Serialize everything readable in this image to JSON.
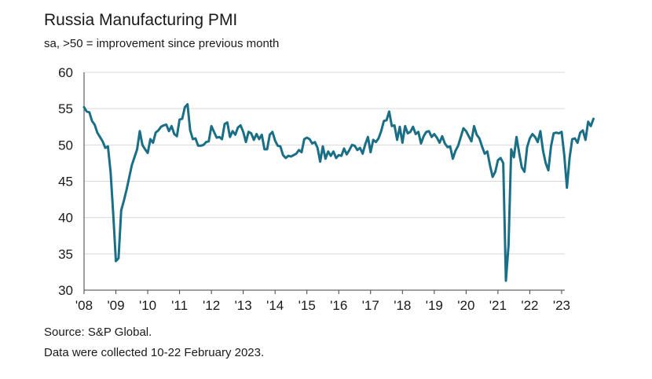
{
  "header": {
    "title": "Russia Manufacturing PMI",
    "subtitle": "sa, >50 = improvement since previous month"
  },
  "footer": {
    "source": "Source: S&P Global.",
    "note": "Data were collected 10-22 February 2023."
  },
  "chart_data": {
    "type": "line",
    "title": "Russia Manufacturing PMI",
    "subtitle": "sa, >50 = improvement since previous month",
    "xlabel": "",
    "ylabel": "",
    "ylim": [
      30,
      60
    ],
    "yticks": [
      30,
      35,
      40,
      45,
      50,
      55,
      60
    ],
    "xticks": [
      {
        "year": 2008,
        "label": "'08"
      },
      {
        "year": 2009,
        "label": "'09"
      },
      {
        "year": 2010,
        "label": "'10"
      },
      {
        "year": 2011,
        "label": "'11"
      },
      {
        "year": 2012,
        "label": "'12"
      },
      {
        "year": 2013,
        "label": "'13"
      },
      {
        "year": 2014,
        "label": "'14"
      },
      {
        "year": 2015,
        "label": "'15"
      },
      {
        "year": 2016,
        "label": "'16"
      },
      {
        "year": 2017,
        "label": "'17"
      },
      {
        "year": 2018,
        "label": "'18"
      },
      {
        "year": 2019,
        "label": "'19"
      },
      {
        "year": 2020,
        "label": "'20"
      },
      {
        "year": 2021,
        "label": "'21"
      },
      {
        "year": 2022,
        "label": "'22"
      },
      {
        "year": 2023,
        "label": "'23"
      }
    ],
    "grid": "horizontal",
    "line_color": "#1a6f86",
    "grid_color": "#d9d9d9",
    "series": [
      {
        "start": "2008-01",
        "frequency": "monthly",
        "values": [
          55.2,
          54.6,
          54.5,
          53.3,
          52.8,
          51.7,
          51.1,
          50.5,
          49.6,
          49.8,
          46.3,
          40.5,
          34.0,
          34.4,
          41.0,
          42.3,
          43.8,
          45.5,
          47.2,
          48.3,
          49.4,
          51.9,
          50.0,
          49.4,
          48.9,
          50.8,
          50.3,
          51.7,
          52.0,
          52.5,
          52.7,
          52.8,
          51.9,
          52.6,
          51.5,
          51.2,
          53.5,
          53.6,
          55.2,
          55.6,
          52.0,
          50.8,
          50.9,
          49.9,
          49.9,
          50.0,
          50.4,
          50.5,
          52.6,
          51.8,
          51.0,
          51.1,
          50.8,
          52.9,
          53.1,
          51.1,
          51.9,
          51.4,
          52.4,
          52.7,
          51.8,
          50.4,
          51.8,
          51.6,
          50.7,
          51.5,
          50.8,
          51.4,
          49.4,
          49.4,
          51.4,
          51.8,
          50.6,
          49.9,
          49.8,
          48.6,
          48.2,
          48.5,
          48.4,
          48.6,
          48.8,
          49.3,
          49.0,
          50.8,
          51.0,
          50.8,
          50.2,
          50.4,
          49.6,
          47.7,
          49.8,
          48.1,
          49.1,
          48.5,
          49.1,
          48.2,
          48.6,
          48.5,
          49.5,
          48.7,
          49.3,
          50.0,
          49.9,
          49.3,
          49.6,
          48.8,
          50.1,
          51.1,
          49.0,
          50.7,
          50.4,
          50.9,
          51.9,
          53.3,
          53.4,
          54.6,
          52.6,
          52.7,
          50.7,
          52.5,
          50.3,
          52.6,
          51.6,
          51.8,
          52.5,
          51.5,
          51.8,
          50.2,
          51.2,
          51.8,
          51.9,
          51.1,
          51.5,
          51.0,
          50.3,
          51.2,
          50.2,
          49.7,
          49.8,
          48.1,
          49.2,
          49.9,
          51.1,
          52.3,
          51.9,
          51.2,
          50.5,
          52.6,
          51.4,
          50.9,
          49.8,
          48.8,
          49.1,
          47.2,
          45.6,
          46.3,
          47.9,
          48.2,
          47.5,
          31.3,
          36.2,
          49.4,
          48.3,
          51.1,
          48.9,
          46.9,
          46.3,
          49.7,
          50.9,
          51.5,
          51.1,
          50.4,
          51.9,
          49.2,
          47.5,
          46.5,
          49.8,
          51.6,
          51.7,
          51.6,
          51.8,
          48.6,
          44.1,
          48.2,
          50.8,
          50.9,
          50.3,
          51.7,
          52.0,
          50.7,
          53.2,
          52.6,
          53.6
        ]
      }
    ]
  }
}
